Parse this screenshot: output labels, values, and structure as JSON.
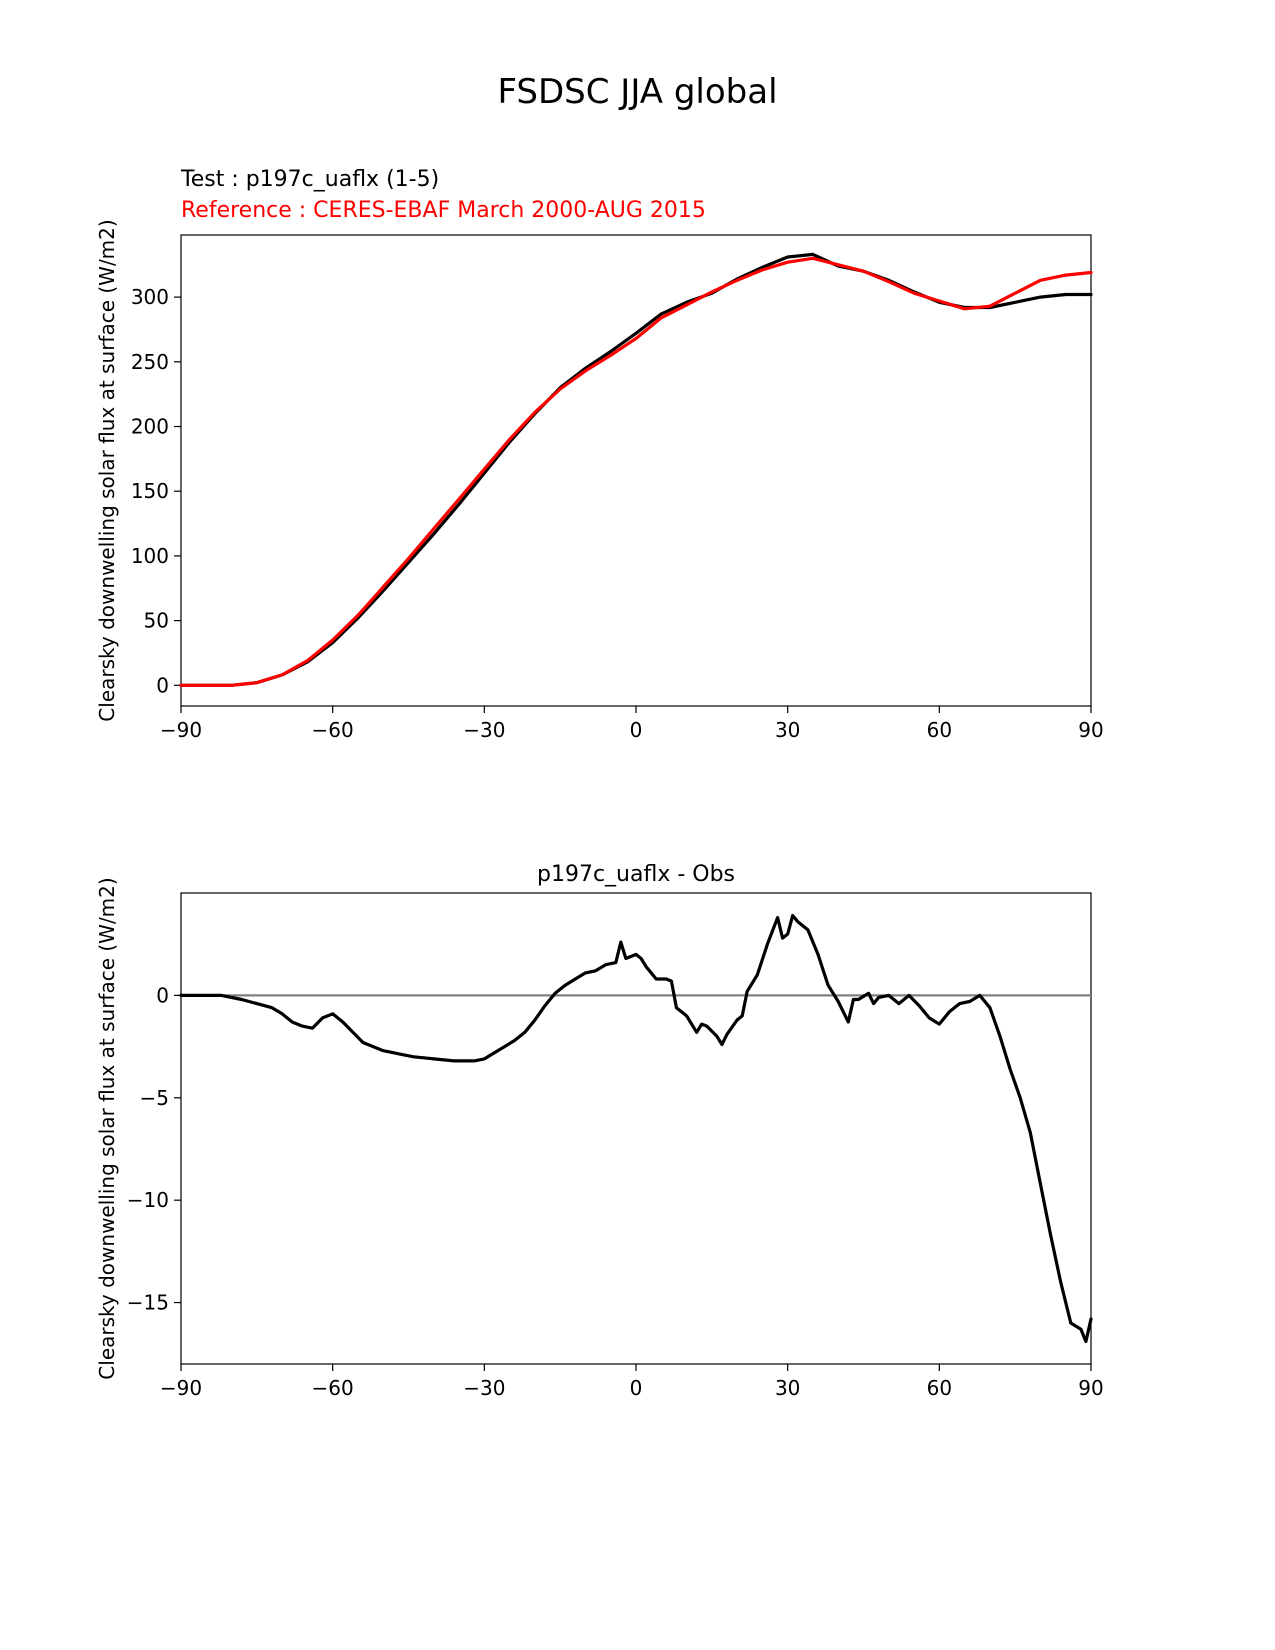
{
  "figure": {
    "title": "FSDSC JJA global"
  },
  "colors": {
    "test": "#000000",
    "reference": "#ff0000",
    "zero_line": "#808080"
  },
  "chart_data": [
    {
      "type": "line",
      "test_label": "Test : p197c_uaflx (1-5)",
      "reference_label": "Reference : CERES-EBAF March 2000-AUG 2015",
      "ylabel": "Clearsky downwelling solar flux at surface (W/m2)",
      "xlabel": "",
      "xlim": [
        -90,
        90
      ],
      "ylim": [
        -16,
        348
      ],
      "xticks": [
        -90,
        -60,
        -30,
        0,
        30,
        60,
        90
      ],
      "xtick_labels": [
        "−90",
        "−60",
        "−30",
        "0",
        "30",
        "60",
        "90"
      ],
      "yticks": [
        0,
        50,
        100,
        150,
        200,
        250,
        300
      ],
      "ytick_labels": [
        "0",
        "50",
        "100",
        "150",
        "200",
        "250",
        "300"
      ],
      "grid": false,
      "x": [
        -90,
        -85,
        -80,
        -75,
        -70,
        -65,
        -60,
        -55,
        -50,
        -45,
        -40,
        -35,
        -30,
        -25,
        -20,
        -15,
        -10,
        -5,
        0,
        5,
        10,
        15,
        20,
        25,
        30,
        35,
        40,
        45,
        50,
        55,
        60,
        65,
        70,
        75,
        80,
        85,
        90
      ],
      "series": [
        {
          "color": "#000000",
          "values": [
            0,
            0,
            0,
            2,
            8,
            18,
            33,
            52,
            73,
            95,
            117,
            140,
            164,
            188,
            210,
            230,
            245,
            258,
            272,
            287,
            296,
            303,
            314,
            323,
            331,
            333,
            324,
            320,
            313,
            304,
            296,
            292,
            292,
            296,
            300,
            302,
            302
          ]
        },
        {
          "color": "#ff0000",
          "values": [
            0,
            0,
            0,
            2,
            8,
            19,
            35,
            54,
            76,
            98,
            121,
            144,
            167,
            190,
            211,
            229,
            243,
            255,
            268,
            284,
            294,
            304,
            313,
            321,
            327,
            330,
            325,
            320,
            312,
            303,
            297,
            291,
            293,
            303,
            313,
            317,
            319
          ]
        }
      ]
    },
    {
      "type": "line",
      "title": "p197c_uaflx - Obs",
      "ylabel": "Clearsky downwelling solar flux at surface (W/m2)",
      "xlabel": "",
      "xlim": [
        -90,
        90
      ],
      "ylim": [
        -18,
        5
      ],
      "xticks": [
        -90,
        -60,
        -30,
        0,
        30,
        60,
        90
      ],
      "xtick_labels": [
        "−90",
        "−60",
        "−30",
        "0",
        "30",
        "60",
        "90"
      ],
      "yticks": [
        -15,
        -10,
        -5,
        0
      ],
      "ytick_labels": [
        "−15",
        "−10",
        "−5",
        "0"
      ],
      "grid": false,
      "zero_line": true,
      "x": [
        -90,
        -85,
        -82,
        -78,
        -75,
        -72,
        -70,
        -68,
        -66,
        -64,
        -62,
        -60,
        -58,
        -56,
        -54,
        -52,
        -50,
        -48,
        -46,
        -44,
        -42,
        -40,
        -38,
        -36,
        -34,
        -32,
        -30,
        -28,
        -26,
        -24,
        -22,
        -20,
        -18,
        -16,
        -14,
        -12,
        -10,
        -8,
        -6,
        -4,
        -3,
        -2,
        0,
        1,
        2,
        4,
        6,
        7,
        8,
        9,
        10,
        12,
        13,
        14,
        16,
        17,
        18,
        20,
        21,
        22,
        24,
        26,
        28,
        29,
        30,
        31,
        32,
        34,
        36,
        38,
        40,
        42,
        43,
        44,
        46,
        47,
        48,
        50,
        52,
        54,
        56,
        58,
        60,
        62,
        64,
        66,
        68,
        70,
        72,
        74,
        76,
        78,
        80,
        82,
        84,
        86,
        88,
        89,
        90
      ],
      "series": [
        {
          "color": "#000000",
          "values": [
            0,
            0,
            0,
            -0.2,
            -0.4,
            -0.6,
            -0.9,
            -1.3,
            -1.5,
            -1.6,
            -1.1,
            -0.9,
            -1.3,
            -1.8,
            -2.3,
            -2.5,
            -2.7,
            -2.8,
            -2.9,
            -3.0,
            -3.05,
            -3.1,
            -3.15,
            -3.2,
            -3.2,
            -3.2,
            -3.1,
            -2.8,
            -2.5,
            -2.2,
            -1.8,
            -1.2,
            -0.5,
            0.1,
            0.5,
            0.8,
            1.1,
            1.2,
            1.5,
            1.6,
            2.6,
            1.8,
            2.0,
            1.8,
            1.4,
            0.8,
            0.8,
            0.7,
            -0.6,
            -0.8,
            -1.0,
            -1.8,
            -1.4,
            -1.5,
            -2.0,
            -2.4,
            -1.9,
            -1.2,
            -1.0,
            0.2,
            1.0,
            2.5,
            3.8,
            2.8,
            3.0,
            3.9,
            3.6,
            3.2,
            2.0,
            0.5,
            -0.3,
            -1.3,
            -0.2,
            -0.2,
            0.1,
            -0.4,
            -0.1,
            0.0,
            -0.4,
            0.0,
            -0.5,
            -1.1,
            -1.4,
            -0.8,
            -0.4,
            -0.3,
            0.0,
            -0.6,
            -2.0,
            -3.6,
            -5.0,
            -6.7,
            -9.2,
            -11.7,
            -14.0,
            -16.0,
            -16.3,
            -16.9,
            -15.8
          ]
        }
      ]
    }
  ]
}
